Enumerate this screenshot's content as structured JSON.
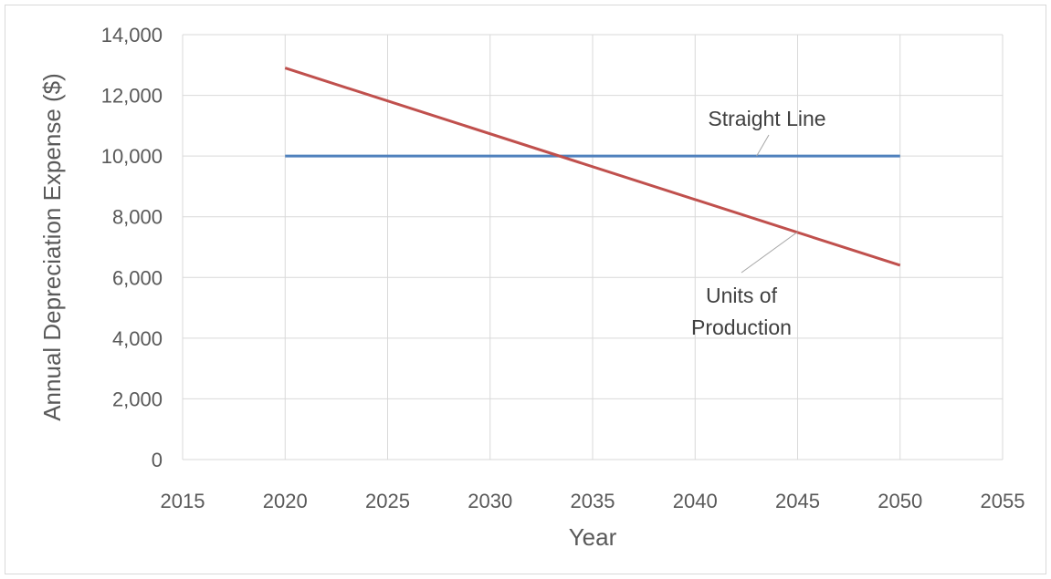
{
  "chart_data": {
    "type": "line",
    "xlabel": "Year",
    "ylabel": "Annual Depreciation Expense ($)",
    "xlim": [
      2015,
      2055
    ],
    "ylim": [
      0,
      14000
    ],
    "x_ticks": [
      2015,
      2020,
      2025,
      2030,
      2035,
      2040,
      2045,
      2050,
      2055
    ],
    "y_ticks": [
      0,
      2000,
      4000,
      6000,
      8000,
      10000,
      12000,
      14000
    ],
    "x_tick_labels": [
      "2015",
      "2020",
      "2025",
      "2030",
      "2035",
      "2040",
      "2045",
      "2050",
      "2055"
    ],
    "y_tick_labels": [
      "0",
      "2,000",
      "4,000",
      "6,000",
      "8,000",
      "10,000",
      "12,000",
      "14,000"
    ],
    "grid": true,
    "legend": "none",
    "series": [
      {
        "name": "Straight Line",
        "color": "#4f81bd",
        "x": [
          2020,
          2050
        ],
        "y": [
          10000,
          10000
        ]
      },
      {
        "name": "Units of Production",
        "color": "#c0504d",
        "x": [
          2020,
          2050
        ],
        "y": [
          12900,
          6400
        ]
      }
    ],
    "annotations": [
      {
        "lines": [
          "Straight Line"
        ],
        "series": "Straight Line",
        "point": [
          2043,
          10000
        ]
      },
      {
        "lines": [
          "Units of",
          "Production"
        ],
        "series": "Units of Production",
        "point": [
          2045,
          7500
        ]
      }
    ]
  }
}
